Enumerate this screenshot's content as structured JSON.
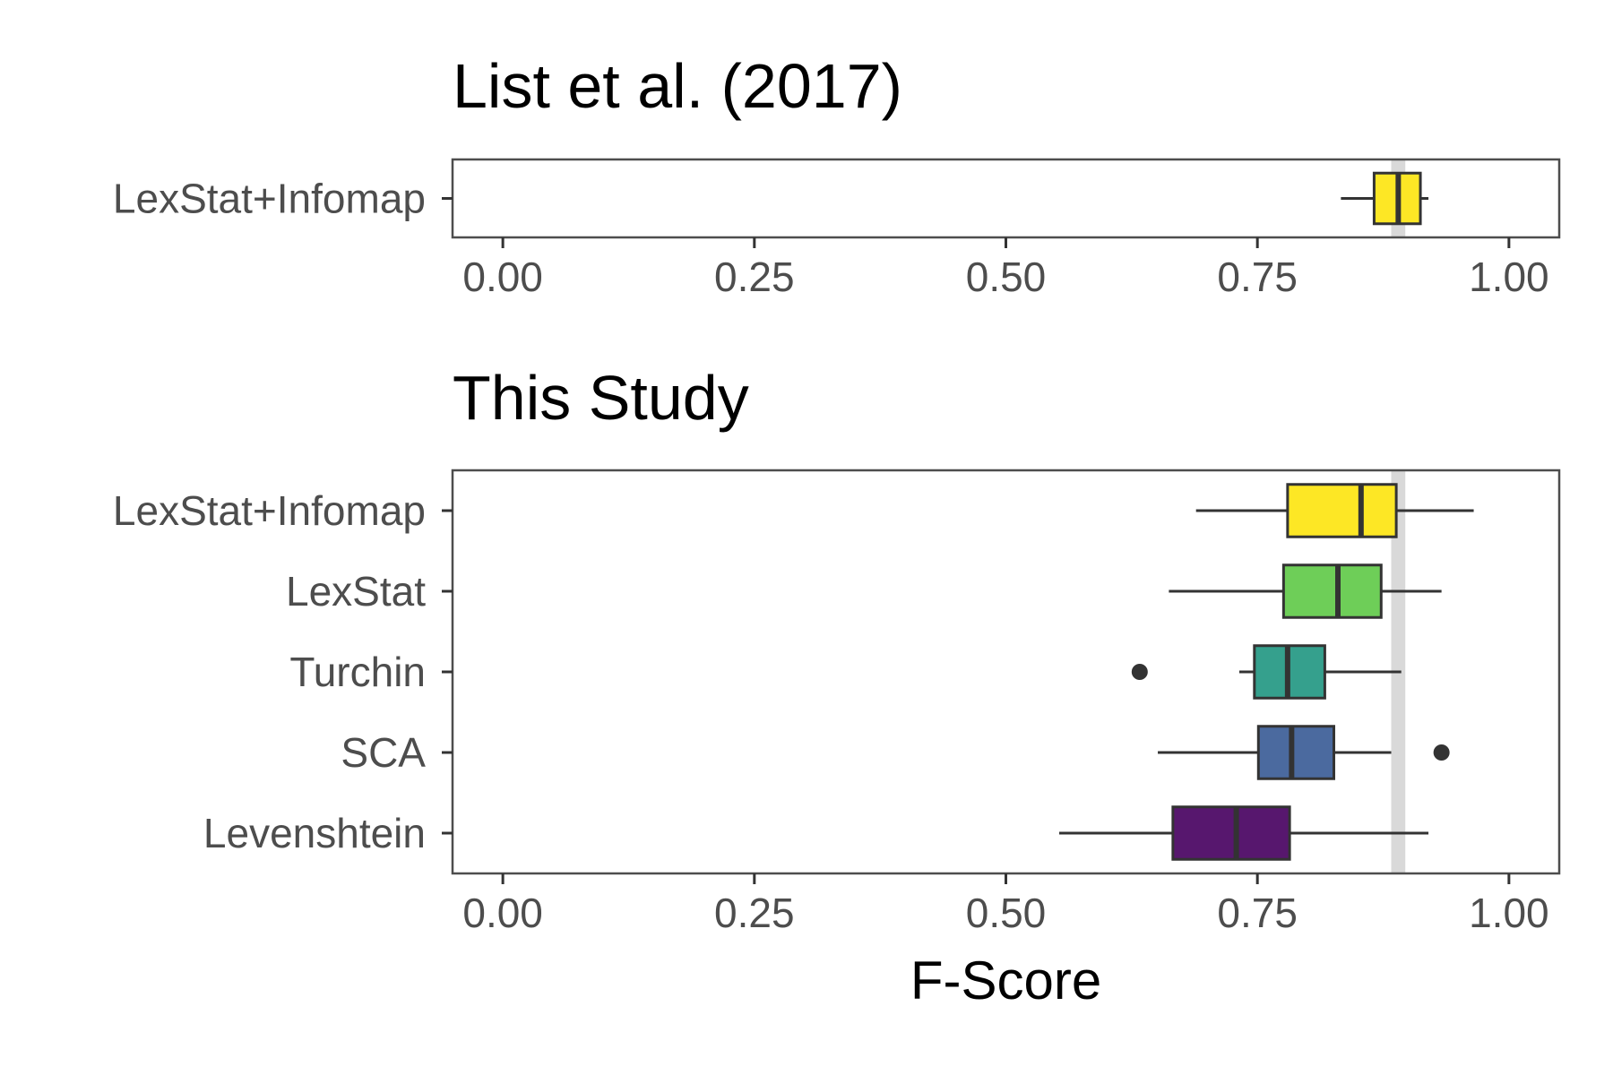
{
  "chart_data": [
    {
      "type": "boxplot",
      "title": "List et al. (2017)",
      "xlabel": "",
      "xlim": [
        -0.05,
        1.05
      ],
      "xticks": [
        "0.00",
        "0.25",
        "0.50",
        "0.75",
        "1.00"
      ],
      "tick_values": [
        0,
        0.25,
        0.5,
        0.75,
        1.0
      ],
      "reference_band": [
        0.883,
        0.897
      ],
      "grid": false,
      "series": [
        {
          "name": "LexStat+Infomap",
          "min": 0.833,
          "q1": 0.866,
          "median": 0.89,
          "q3": 0.912,
          "max": 0.92,
          "outliers": [],
          "color": "#fde725"
        }
      ]
    },
    {
      "type": "boxplot",
      "title": "This Study",
      "xlabel": "F-Score",
      "xlim": [
        -0.05,
        1.05
      ],
      "xticks": [
        "0.00",
        "0.25",
        "0.50",
        "0.75",
        "1.00"
      ],
      "tick_values": [
        0,
        0.25,
        0.5,
        0.75,
        1.0
      ],
      "reference_band": [
        0.883,
        0.897
      ],
      "grid": false,
      "series": [
        {
          "name": "LexStat+Infomap",
          "min": 0.689,
          "q1": 0.78,
          "median": 0.853,
          "q3": 0.888,
          "max": 0.965,
          "outliers": [],
          "color": "#fde725"
        },
        {
          "name": "LexStat",
          "min": 0.662,
          "q1": 0.776,
          "median": 0.83,
          "q3": 0.873,
          "max": 0.933,
          "outliers": [],
          "color": "#6ece58"
        },
        {
          "name": "Turchin",
          "min": 0.732,
          "q1": 0.747,
          "median": 0.78,
          "q3": 0.817,
          "max": 0.893,
          "outliers": [
            0.633
          ],
          "color": "#35a08d"
        },
        {
          "name": "SCA",
          "min": 0.651,
          "q1": 0.751,
          "median": 0.784,
          "q3": 0.826,
          "max": 0.883,
          "outliers": [
            0.933
          ],
          "color": "#4b6a9f"
        },
        {
          "name": "Levenshtein",
          "min": 0.553,
          "q1": 0.666,
          "median": 0.729,
          "q3": 0.782,
          "max": 0.92,
          "outliers": [],
          "color": "#57176e"
        }
      ]
    }
  ]
}
